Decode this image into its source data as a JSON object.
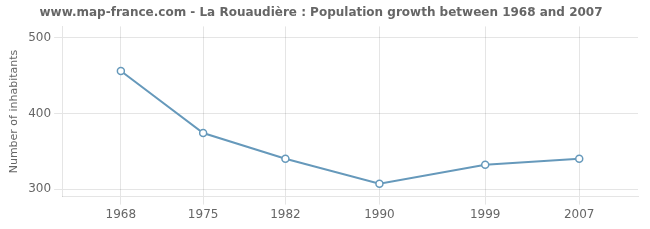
{
  "chart_data": {
    "type": "line",
    "title": "www.map-france.com - La Rouaudière : Population growth between 1968 and 2007",
    "ylabel": "Number of inhabitants",
    "x": [
      1968,
      1975,
      1982,
      1990,
      1999,
      2007
    ],
    "values": [
      456,
      374,
      340,
      307,
      332,
      340
    ],
    "color": "#6699bb",
    "marker": "circle",
    "xlim": [
      1963,
      2012
    ],
    "xticks": [
      1968,
      1975,
      1982,
      1990,
      1999,
      2007
    ],
    "ylim": [
      290,
      515
    ],
    "yticks": [
      300,
      400,
      500
    ],
    "grid": true
  }
}
